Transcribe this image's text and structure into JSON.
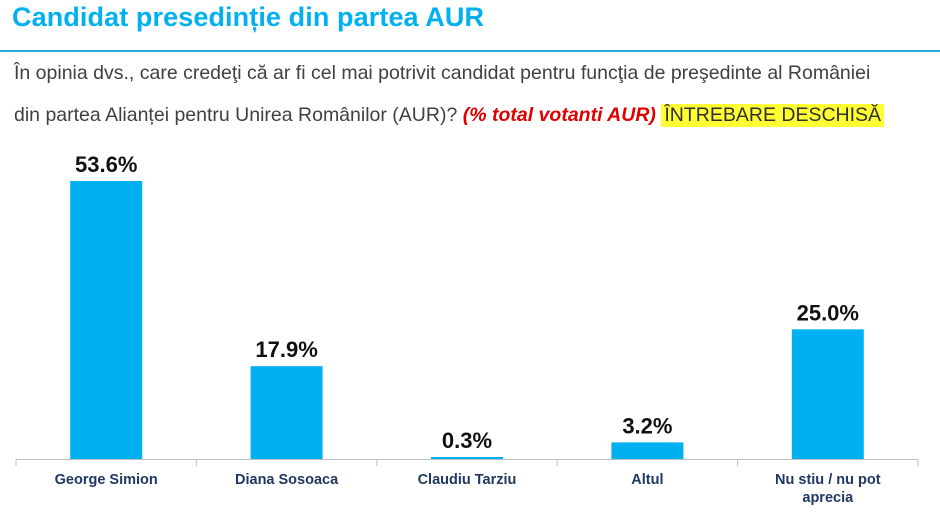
{
  "header": {
    "title": "Candidat presedinție din partea AUR"
  },
  "question": {
    "line1": "În opinia dvs., care credeţi că ar fi cel mai potrivit candidat pentru funcţia de preşedinte al României",
    "line2": "din partea Alianței pentru Unirea Românilor (AUR)?",
    "highlight": "(% total votanti AUR)",
    "open_label": "ÎNTREBARE DESCHISĂ"
  },
  "colors": {
    "title": "#00b0f0",
    "bar": "#00b0f0",
    "highlight_text": "#e00000",
    "open_label_bg": "#ffff33"
  },
  "chart_data": {
    "type": "bar",
    "categories": [
      "George Simion",
      "Diana Sosoaca",
      "Claudiu Tarziu",
      "Altul",
      "Nu stiu / nu pot aprecia"
    ],
    "category_lines": [
      [
        "George Simion"
      ],
      [
        "Diana Sosoaca"
      ],
      [
        "Claudiu Tarziu"
      ],
      [
        "Altul"
      ],
      [
        "Nu stiu / nu pot",
        "aprecia"
      ]
    ],
    "values": [
      53.6,
      17.9,
      0.3,
      3.2,
      25.0
    ],
    "data_labels": [
      "53.6%",
      "17.9%",
      "0.3%",
      "3.2%",
      "25.0%"
    ],
    "unit": "%",
    "ylim": [
      0,
      53.6
    ],
    "grid": false,
    "legend": "none"
  }
}
